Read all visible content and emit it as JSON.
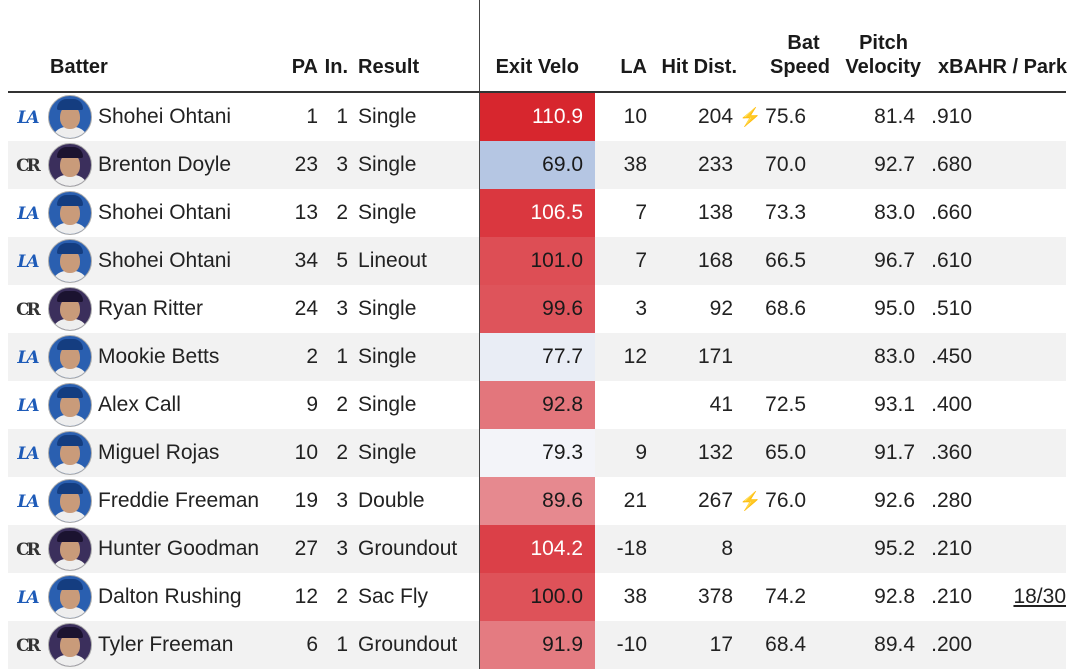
{
  "headers": {
    "batter": "Batter",
    "pa": "PA",
    "inning": "In.",
    "result": "Result",
    "exit_velo": "Exit Velo",
    "la": "LA",
    "hit_dist": "Hit Dist.",
    "bat_speed_line1": "Bat",
    "bat_speed_line2": "Speed",
    "pitch_velocity_line1": "Pitch",
    "pitch_velocity_line2": "Velocity",
    "xba": "xBA",
    "hr_park": "HR / Park"
  },
  "colors": {
    "ev_high": "#d7262e",
    "ev_low": "#b5c6e3",
    "lightning": "#f07b2a",
    "dodgers_blue": "#1e5bb8"
  },
  "rows": [
    {
      "team": "LAD",
      "team_icon": "dodgers-logo-icon",
      "batter": "Shohei Ohtani",
      "pa": "1",
      "inning": "1",
      "result": "Single",
      "exit_velo": "110.9",
      "la": "10",
      "hit_dist": "204",
      "bat_speed": "75.6",
      "fast_swing": true,
      "pitch_velocity": "81.4",
      "xba": ".910",
      "hr_park": ""
    },
    {
      "team": "COL",
      "team_icon": "rockies-logo-icon",
      "batter": "Brenton Doyle",
      "pa": "23",
      "inning": "3",
      "result": "Single",
      "exit_velo": "69.0",
      "la": "38",
      "hit_dist": "233",
      "bat_speed": "70.0",
      "fast_swing": false,
      "pitch_velocity": "92.7",
      "xba": ".680",
      "hr_park": ""
    },
    {
      "team": "LAD",
      "team_icon": "dodgers-logo-icon",
      "batter": "Shohei Ohtani",
      "pa": "13",
      "inning": "2",
      "result": "Single",
      "exit_velo": "106.5",
      "la": "7",
      "hit_dist": "138",
      "bat_speed": "73.3",
      "fast_swing": false,
      "pitch_velocity": "83.0",
      "xba": ".660",
      "hr_park": ""
    },
    {
      "team": "LAD",
      "team_icon": "dodgers-logo-icon",
      "batter": "Shohei Ohtani",
      "pa": "34",
      "inning": "5",
      "result": "Lineout",
      "exit_velo": "101.0",
      "la": "7",
      "hit_dist": "168",
      "bat_speed": "66.5",
      "fast_swing": false,
      "pitch_velocity": "96.7",
      "xba": ".610",
      "hr_park": ""
    },
    {
      "team": "COL",
      "team_icon": "rockies-logo-icon",
      "batter": "Ryan Ritter",
      "pa": "24",
      "inning": "3",
      "result": "Single",
      "exit_velo": "99.6",
      "la": "3",
      "hit_dist": "92",
      "bat_speed": "68.6",
      "fast_swing": false,
      "pitch_velocity": "95.0",
      "xba": ".510",
      "hr_park": ""
    },
    {
      "team": "LAD",
      "team_icon": "dodgers-logo-icon",
      "batter": "Mookie Betts",
      "pa": "2",
      "inning": "1",
      "result": "Single",
      "exit_velo": "77.7",
      "la": "12",
      "hit_dist": "171",
      "bat_speed": "",
      "fast_swing": false,
      "pitch_velocity": "83.0",
      "xba": ".450",
      "hr_park": ""
    },
    {
      "team": "LAD",
      "team_icon": "dodgers-logo-icon",
      "batter": "Alex Call",
      "pa": "9",
      "inning": "2",
      "result": "Single",
      "exit_velo": "92.8",
      "la": "",
      "hit_dist": "41",
      "bat_speed": "72.5",
      "fast_swing": false,
      "pitch_velocity": "93.1",
      "xba": ".400",
      "hr_park": ""
    },
    {
      "team": "LAD",
      "team_icon": "dodgers-logo-icon",
      "batter": "Miguel Rojas",
      "pa": "10",
      "inning": "2",
      "result": "Single",
      "exit_velo": "79.3",
      "la": "9",
      "hit_dist": "132",
      "bat_speed": "65.0",
      "fast_swing": false,
      "pitch_velocity": "91.7",
      "xba": ".360",
      "hr_park": ""
    },
    {
      "team": "LAD",
      "team_icon": "dodgers-logo-icon",
      "batter": "Freddie Freeman",
      "pa": "19",
      "inning": "3",
      "result": "Double",
      "exit_velo": "89.6",
      "la": "21",
      "hit_dist": "267",
      "bat_speed": "76.0",
      "fast_swing": true,
      "pitch_velocity": "92.6",
      "xba": ".280",
      "hr_park": ""
    },
    {
      "team": "COL",
      "team_icon": "rockies-logo-icon",
      "batter": "Hunter Goodman",
      "pa": "27",
      "inning": "3",
      "result": "Groundout",
      "exit_velo": "104.2",
      "la": "-18",
      "hit_dist": "8",
      "bat_speed": "",
      "fast_swing": false,
      "pitch_velocity": "95.2",
      "xba": ".210",
      "hr_park": ""
    },
    {
      "team": "LAD",
      "team_icon": "dodgers-logo-icon",
      "batter": "Dalton Rushing",
      "pa": "12",
      "inning": "2",
      "result": "Sac Fly",
      "exit_velo": "100.0",
      "la": "38",
      "hit_dist": "378",
      "bat_speed": "74.2",
      "fast_swing": false,
      "pitch_velocity": "92.8",
      "xba": ".210",
      "hr_park": "18/30"
    },
    {
      "team": "COL",
      "team_icon": "rockies-logo-icon",
      "batter": "Tyler Freeman",
      "pa": "6",
      "inning": "1",
      "result": "Groundout",
      "exit_velo": "91.9",
      "la": "-10",
      "hit_dist": "17",
      "bat_speed": "68.4",
      "fast_swing": false,
      "pitch_velocity": "89.4",
      "xba": ".200",
      "hr_park": ""
    }
  ]
}
